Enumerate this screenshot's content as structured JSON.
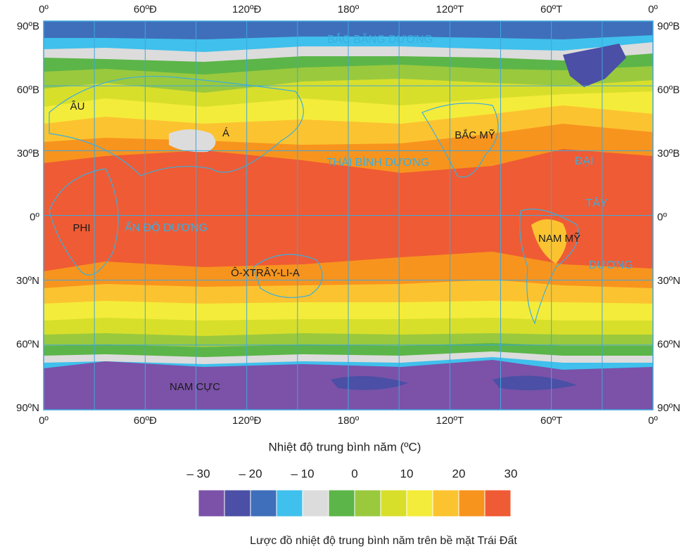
{
  "map": {
    "top_longitudes": [
      "0º",
      "60ºĐ",
      "120ºĐ",
      "180º",
      "120ºT",
      "60ºT",
      "0º"
    ],
    "bottom_longitudes": [
      "0º",
      "60ºĐ",
      "120ºĐ",
      "180º",
      "120ºT",
      "60ºT",
      "0º"
    ],
    "left_latitudes": [
      "90ºB",
      "60ºB",
      "30ºB",
      "0º",
      "30ºN",
      "60ºN",
      "90ºN"
    ],
    "right_latitudes": [
      "90ºB",
      "60ºB",
      "30ºB",
      "0º",
      "30ºN",
      "60ºN",
      "90ºN"
    ],
    "labels": {
      "arctic_ocean": "BẮC BĂNG DƯƠNG",
      "europe": "ÂU",
      "asia": "Á",
      "north_america": "BẮC MỸ",
      "pacific_ocean": "THÁI BÌNH DƯƠNG",
      "atlantic_1": "ĐẠI",
      "atlantic_2": "TÂY",
      "atlantic_3": "DƯƠNG",
      "africa": "PHI",
      "indian_ocean": "ẤN ĐỘ DƯƠNG",
      "south_america": "NAM MỸ",
      "australia": "Ô-XTRÂY-LI-A",
      "antarctica": "NAM CỰC"
    }
  },
  "legend": {
    "title": "Nhiệt độ trung bình năm (ºC)",
    "ticks": [
      {
        "value": -30,
        "label": "– 30"
      },
      {
        "value": -20,
        "label": "– 20"
      },
      {
        "value": -10,
        "label": "– 10"
      },
      0,
      10,
      20,
      30
    ],
    "colors": [
      "#7b52a8",
      "#4b4fa6",
      "#3f6fba",
      "#40c0ec",
      "#dcdcdc",
      "#5cb548",
      "#9ac93e",
      "#d8df2b",
      "#f4ec3a",
      "#fcc330",
      "#f7941e",
      "#ef5b34"
    ]
  },
  "caption": "Lược đồ nhiệt độ trung bình năm trên bề mặt Trái Đất"
}
